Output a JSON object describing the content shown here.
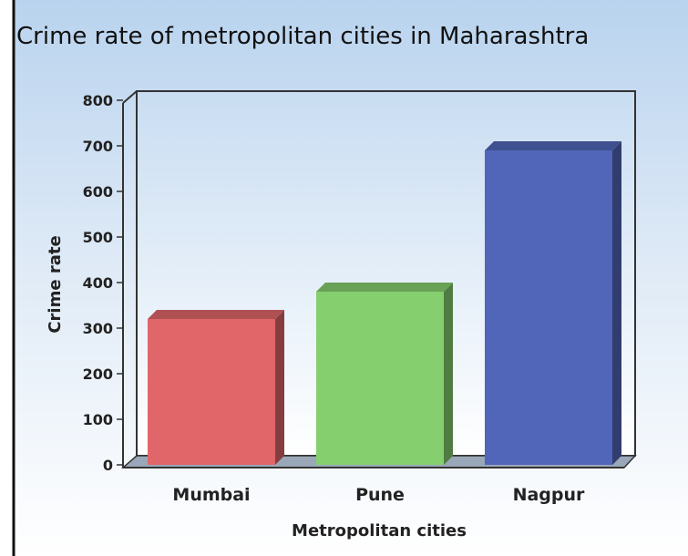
{
  "chart_data": {
    "type": "bar",
    "title": "Crime rate of metropolitan cities in Maharashtra",
    "xlabel": "Metropolitan cities",
    "ylabel": "Crime rate",
    "categories": [
      "Mumbai",
      "Pune",
      "Nagpur"
    ],
    "values": [
      320,
      380,
      690
    ],
    "ylim": [
      0,
      800
    ],
    "yticks": [
      0,
      100,
      200,
      300,
      400,
      500,
      600,
      700,
      800
    ],
    "bar_colors": [
      "#e0666a",
      "#86cf6e",
      "#5166b8"
    ],
    "grid": false,
    "legend": "none"
  }
}
